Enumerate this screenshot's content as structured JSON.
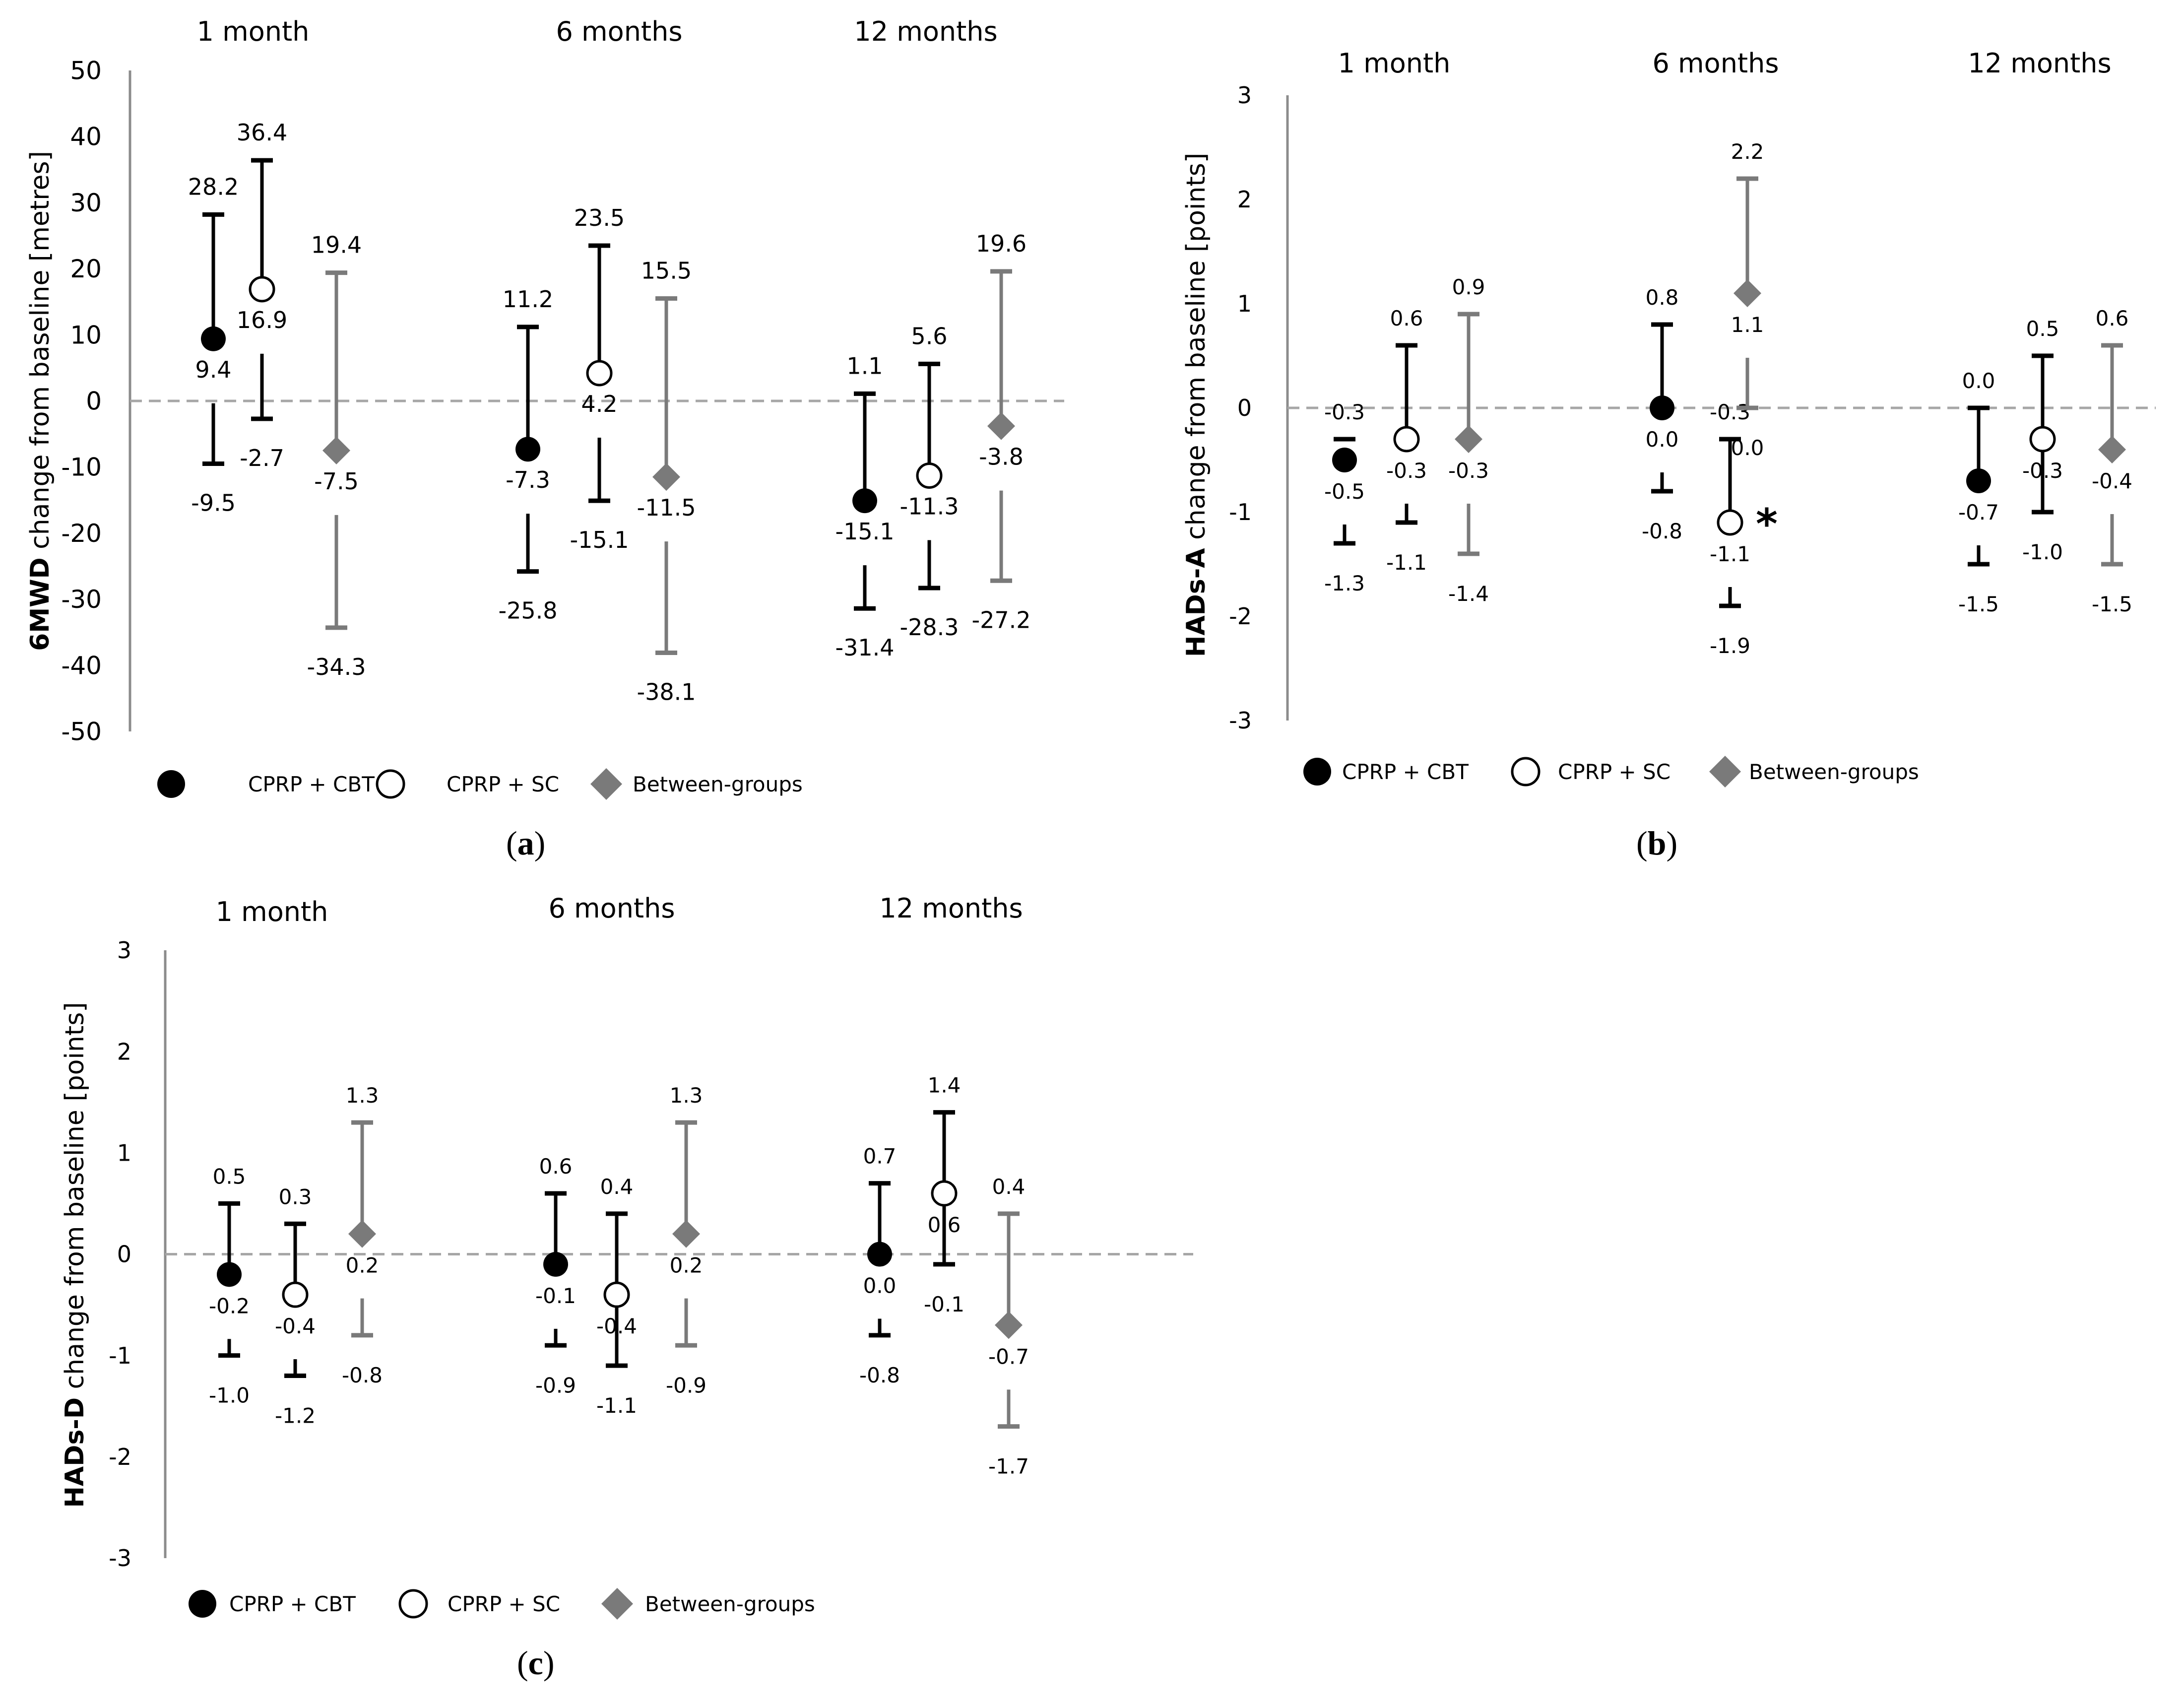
{
  "legend": [
    {
      "name": "CPRP + CBT",
      "marker": "filled-circle",
      "color": "#000000"
    },
    {
      "name": "CPRP + SC",
      "marker": "open-circle",
      "color": "#000000"
    },
    {
      "name": "Between-groups",
      "marker": "diamond",
      "color": "#7a7a7a"
    }
  ],
  "colors": {
    "group": "#000000",
    "between": "#7a7a7a",
    "zero_line": "#a6a6a6",
    "axis": "#8c8c8c",
    "text": "#000000"
  },
  "chart_data": [
    {
      "type": "scatter",
      "panel_label": "a",
      "ylabel_bold": "6MWD",
      "ylabel_rest": " change from baseline [metres]",
      "ylim": [
        -50,
        50
      ],
      "yticks": [
        50,
        40,
        30,
        20,
        10,
        0,
        -10,
        -20,
        -30,
        -40,
        -50
      ],
      "categories": [
        "1 month",
        "6 months",
        "12 months"
      ],
      "zero_line": "dashed",
      "series": [
        {
          "name": "CPRP + CBT",
          "values": [
            9.4,
            -7.3,
            -15.1
          ],
          "upper": [
            28.2,
            11.2,
            1.1
          ],
          "lower": [
            -9.5,
            -25.8,
            -31.4
          ]
        },
        {
          "name": "CPRP + SC",
          "values": [
            16.9,
            4.2,
            -11.3
          ],
          "upper": [
            36.4,
            23.5,
            5.6
          ],
          "lower": [
            -2.7,
            -15.1,
            -28.3
          ]
        },
        {
          "name": "Between-groups",
          "values": [
            -7.5,
            -11.5,
            -3.8
          ],
          "upper": [
            19.4,
            15.5,
            19.6
          ],
          "lower": [
            -34.3,
            -38.1,
            -27.2
          ]
        }
      ],
      "value_labels": [
        [
          "9.4",
          "-7.3",
          "-15.1"
        ],
        [
          "16.9",
          "4.2",
          "-11.3"
        ],
        [
          "-7.5",
          "-11.5",
          "-3.8"
        ]
      ],
      "upper_labels": [
        [
          "28.2",
          "11.2",
          "1.1"
        ],
        [
          "36.4",
          "23.5",
          "5.6"
        ],
        [
          "19.4",
          "15.5",
          "19.6"
        ]
      ],
      "lower_labels": [
        [
          "-9.5",
          "-25.8",
          "-31.4"
        ],
        [
          "-2.7",
          "-15.1",
          "-28.3"
        ],
        [
          "-34.3",
          "-38.1",
          "-27.2"
        ]
      ],
      "asterisk": null
    },
    {
      "type": "scatter",
      "panel_label": "b",
      "ylabel_bold": "HADs-A",
      "ylabel_rest": " change from baseline [points]",
      "ylim": [
        -3,
        3
      ],
      "yticks": [
        3,
        2,
        1,
        0,
        -1,
        -2,
        -3
      ],
      "categories": [
        "1 month",
        "6 months",
        "12 months"
      ],
      "zero_line": "dashed",
      "series": [
        {
          "name": "CPRP + CBT",
          "values": [
            -0.5,
            0.0,
            -0.7
          ],
          "upper": [
            -0.3,
            0.8,
            0.0
          ],
          "lower": [
            -1.3,
            -0.8,
            -1.5
          ]
        },
        {
          "name": "CPRP + SC",
          "values": [
            -0.3,
            -1.1,
            -0.3
          ],
          "upper": [
            0.6,
            -0.3,
            0.5
          ],
          "lower": [
            -1.1,
            -1.9,
            -1.0
          ]
        },
        {
          "name": "Between-groups",
          "values": [
            -0.3,
            1.1,
            -0.4
          ],
          "upper": [
            0.9,
            2.2,
            0.6
          ],
          "lower": [
            -1.4,
            0.0,
            -1.5
          ]
        }
      ],
      "value_labels": [
        [
          "-0.5",
          "0.0",
          "-0.7"
        ],
        [
          "-0.3",
          "-1.1",
          "-0.3"
        ],
        [
          "-0.3",
          "1.1",
          "-0.4"
        ]
      ],
      "upper_labels": [
        [
          "-0.3",
          "0.8",
          "0.0"
        ],
        [
          "0.6",
          "-0.3",
          "0.5"
        ],
        [
          "0.9",
          "2.2",
          "0.6"
        ]
      ],
      "lower_labels": [
        [
          "-1.3",
          "-0.8",
          "-1.5"
        ],
        [
          "-1.1",
          "-1.9",
          "-1.0"
        ],
        [
          "-1.4",
          "0.0",
          "-1.5"
        ]
      ],
      "asterisk": {
        "series": 1,
        "category": 1,
        "text": "*"
      }
    },
    {
      "type": "scatter",
      "panel_label": "c",
      "ylabel_bold": "HADs-D",
      "ylabel_rest": " change from baseline [points]",
      "ylim": [
        -3,
        3
      ],
      "yticks": [
        3,
        2,
        1,
        0,
        -1,
        -2,
        -3
      ],
      "categories": [
        "1 month",
        "6 months",
        "12 months"
      ],
      "zero_line": "dashed",
      "series": [
        {
          "name": "CPRP + CBT",
          "values": [
            -0.2,
            -0.1,
            0.0
          ],
          "upper": [
            0.5,
            0.6,
            0.7
          ],
          "lower": [
            -1.0,
            -0.9,
            -0.8
          ]
        },
        {
          "name": "CPRP + SC",
          "values": [
            -0.4,
            -0.4,
            0.6
          ],
          "upper": [
            0.3,
            0.4,
            1.4
          ],
          "lower": [
            -1.2,
            -1.1,
            -0.1
          ]
        },
        {
          "name": "Between-groups",
          "values": [
            0.2,
            0.2,
            -0.7
          ],
          "upper": [
            1.3,
            1.3,
            0.4
          ],
          "lower": [
            -0.8,
            -0.9,
            -1.7
          ]
        }
      ],
      "value_labels": [
        [
          "-0.2",
          "-0.1",
          "0.0"
        ],
        [
          "-0.4",
          "-0.4",
          "0.6"
        ],
        [
          "0.2",
          "0.2",
          "-0.7"
        ]
      ],
      "upper_labels": [
        [
          "0.5",
          "0.6",
          "0.7"
        ],
        [
          "0.3",
          "0.4",
          "1.4"
        ],
        [
          "1.3",
          "1.3",
          "0.4"
        ]
      ],
      "lower_labels": [
        [
          "-1.0",
          "-0.9",
          "-0.8"
        ],
        [
          "-1.2",
          "-1.1",
          "-0.1"
        ],
        [
          "-0.8",
          "-0.9",
          "-1.7"
        ]
      ],
      "asterisk": null
    }
  ]
}
